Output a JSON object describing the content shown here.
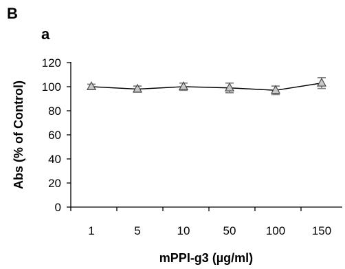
{
  "figure": {
    "panel_label": "B",
    "subpanel_label": "a"
  },
  "chart_data": {
    "type": "line",
    "title": "",
    "xlabel": "mPPI-g3 (µg/ml)",
    "ylabel": "Abs (% of Control)",
    "categories": [
      "1",
      "5",
      "10",
      "50",
      "100",
      "150"
    ],
    "series": [
      {
        "values": [
          100,
          98,
          100,
          99,
          97,
          103
        ],
        "errors": [
          2,
          2.5,
          3,
          4,
          3.5,
          4.5
        ],
        "marker": "triangle",
        "color": "#000000",
        "marker_fill": "#c8c8c8",
        "errorbar_color": "#808080"
      }
    ],
    "ylim": [
      0,
      120
    ],
    "yticks": [
      0,
      20,
      40,
      60,
      80,
      100,
      120
    ],
    "grid": false,
    "legend": "none"
  }
}
